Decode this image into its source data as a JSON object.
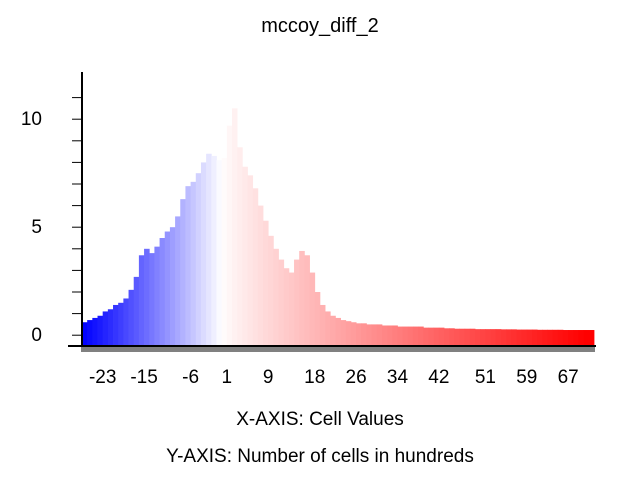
{
  "chart_data": {
    "type": "bar",
    "title": "mccoy_diff_2",
    "xlabel": "X-AXIS: Cell Values",
    "ylabel": "Y-AXIS: Number of cells in hundreds",
    "x_ticks": [
      "-23",
      "-15",
      "-6",
      "1",
      "9",
      "18",
      "26",
      "34",
      "42",
      "51",
      "59",
      "67"
    ],
    "x_tick_values": [
      -23,
      -15,
      -6,
      1,
      9,
      18,
      26,
      34,
      42,
      51,
      59,
      67
    ],
    "y_ticks": [
      "0",
      "5",
      "10"
    ],
    "y_tick_values": [
      0,
      5,
      10
    ],
    "xlim": [
      -27,
      72
    ],
    "ylim": [
      0,
      11.5
    ],
    "y_baseline": 0,
    "grid": false,
    "legend": "none",
    "color_low": "#0000ff",
    "color_mid": "#ffffff",
    "color_high": "#ff0000",
    "series": [
      {
        "x": [
          -26.5,
          -25.5,
          -24.5,
          -23.5,
          -22.5,
          -21.5,
          -20.5,
          -19.5,
          -18.5,
          -17.5,
          -16.5,
          -15.5,
          -14.5,
          -13.5,
          -12.5,
          -11.5,
          -10.5,
          -9.5,
          -8.5,
          -7.5,
          -6.5,
          -5.5,
          -4.5,
          -3.5,
          -2.5,
          -1.5,
          -0.5,
          0.5,
          1.5,
          2.5,
          3.5,
          4.5,
          5.5,
          6.5,
          7.5,
          8.5,
          9.5,
          10.5,
          11.5,
          12.5,
          13.5,
          14.5,
          15.5,
          16.5,
          17.5,
          18.5,
          19.5,
          20.5,
          21.5,
          22.5,
          23.5,
          24.5,
          25.5,
          26.5,
          27.5,
          28.5,
          29.5,
          30.5,
          31.5,
          32.5,
          33.5,
          34.5,
          35.5,
          36.5,
          37.5,
          38.5,
          39.5,
          40.5,
          41.5,
          42.5,
          43.5,
          44.5,
          45.5,
          46.5,
          47.5,
          48.5,
          49.5,
          50.5,
          51.5,
          52.5,
          53.5,
          54.5,
          55.5,
          56.5,
          57.5,
          58.5,
          59.5,
          60.5,
          61.5,
          62.5,
          63.5,
          64.5,
          65.5,
          66.5,
          67.5,
          68.5,
          69.5,
          70.5,
          71.5
        ],
        "values": [
          1.1,
          1.2,
          1.3,
          1.4,
          1.6,
          1.7,
          1.9,
          2.0,
          2.2,
          2.6,
          3.2,
          4.2,
          4.5,
          4.3,
          4.6,
          5.0,
          5.3,
          5.5,
          6.0,
          6.8,
          7.4,
          7.6,
          8.0,
          8.5,
          8.9,
          8.8,
          8.6,
          8.7,
          10.2,
          11.0,
          9.2,
          8.3,
          7.9,
          7.3,
          6.5,
          5.8,
          5.1,
          4.5,
          4.0,
          3.6,
          3.4,
          4.0,
          4.4,
          4.2,
          3.4,
          2.5,
          1.9,
          1.6,
          1.4,
          1.3,
          1.2,
          1.15,
          1.1,
          1.05,
          1.05,
          1.0,
          1.0,
          1.0,
          0.95,
          0.95,
          0.95,
          0.9,
          0.9,
          0.9,
          0.9,
          0.9,
          0.85,
          0.85,
          0.85,
          0.85,
          0.82,
          0.82,
          0.8,
          0.8,
          0.8,
          0.8,
          0.78,
          0.78,
          0.78,
          0.78,
          0.78,
          0.77,
          0.77,
          0.77,
          0.76,
          0.76,
          0.76,
          0.76,
          0.75,
          0.75,
          0.75,
          0.75,
          0.75,
          0.74,
          0.74,
          0.74,
          0.74,
          0.74,
          0.74
        ]
      }
    ]
  }
}
